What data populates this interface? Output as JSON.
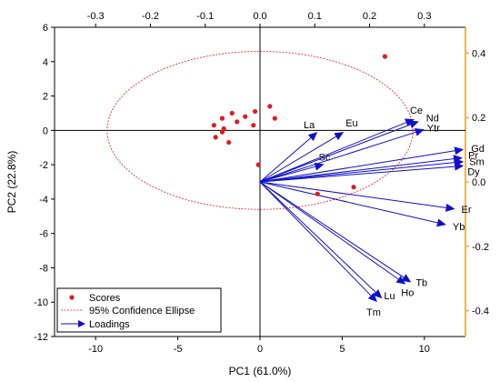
{
  "chart_data": {
    "type": "scatter",
    "title": "",
    "xlabel": "PC1 (61.0%)",
    "ylabel": "PC2 (22.8%)",
    "xlim": [
      -12.5,
      12.5
    ],
    "ylim": [
      -12,
      6
    ],
    "x_ticks": [
      "-10",
      "-5",
      "0",
      "5",
      "10"
    ],
    "y_ticks": [
      "-12",
      "-10",
      "-8",
      "-6",
      "-4",
      "-2",
      "0",
      "2",
      "4",
      "6"
    ],
    "top_axis": {
      "lim": [
        -0.375,
        0.375
      ],
      "ticks": [
        "-0.3",
        "-0.2",
        "-0.1",
        "0.0",
        "0.1",
        "0.2",
        "0.3"
      ]
    },
    "right_axis": {
      "lim": [
        -0.48,
        0.48
      ],
      "ticks": [
        "-0.4",
        "-0.2",
        "0.0",
        "0.2",
        "0.4"
      ],
      "color": "#f0a020"
    },
    "grid": false,
    "legend_position": "bottom-left",
    "series": [
      {
        "name": "Scores",
        "kind": "points",
        "color": "#e31a1c",
        "points": [
          [
            -2.8,
            0.3
          ],
          [
            -2.7,
            -0.4
          ],
          [
            -2.3,
            0.7
          ],
          [
            -2.2,
            0.1
          ],
          [
            -2.3,
            -0.1
          ],
          [
            -1.7,
            1.0
          ],
          [
            -1.4,
            0.5
          ],
          [
            -0.9,
            0.8
          ],
          [
            -0.4,
            0.3
          ],
          [
            -0.3,
            1.1
          ],
          [
            -1.9,
            -0.7
          ],
          [
            0.6,
            1.4
          ],
          [
            0.9,
            0.7
          ],
          [
            -0.1,
            -2.0
          ],
          [
            3.5,
            -3.7
          ],
          [
            5.7,
            -3.3
          ],
          [
            7.6,
            4.3
          ]
        ]
      },
      {
        "name": "95% Confidence Ellipse",
        "kind": "ellipse",
        "color": "#e31a1c",
        "center": [
          0,
          0
        ],
        "radii": [
          9.3,
          4.6
        ]
      },
      {
        "name": "Loadings",
        "kind": "vectors",
        "color": "#1010cc",
        "origin": [
          0,
          -3
        ],
        "vectors": [
          {
            "label": "La",
            "end": [
              0.105,
              0.155
            ]
          },
          {
            "label": "Eu",
            "end": [
              0.153,
              0.155
            ]
          },
          {
            "label": "Ce",
            "end": [
              0.282,
              0.195
            ]
          },
          {
            "label": "Nd",
            "end": [
              0.29,
              0.188
            ]
          },
          {
            "label": "Ytr",
            "end": [
              0.3,
              0.163
            ]
          },
          {
            "label": "Sc",
            "end": [
              0.117,
              0.055
            ]
          },
          {
            "label": "Gd",
            "end": [
              0.372,
              0.101
            ]
          },
          {
            "label": "Pr",
            "end": [
              0.37,
              0.075
            ]
          },
          {
            "label": "Sm",
            "end": [
              0.372,
              0.063
            ]
          },
          {
            "label": "Dy",
            "end": [
              0.372,
              0.05
            ]
          },
          {
            "label": "Er",
            "end": [
              0.356,
              -0.084
            ]
          },
          {
            "label": "Yb",
            "end": [
              0.34,
              -0.133
            ]
          },
          {
            "label": "Tb",
            "end": [
              0.276,
              -0.312
            ]
          },
          {
            "label": "Ho",
            "end": [
              0.266,
              -0.318
            ]
          },
          {
            "label": "Lu",
            "end": [
              0.223,
              -0.362
            ]
          },
          {
            "label": "Tm",
            "end": [
              0.214,
              -0.373
            ]
          }
        ]
      }
    ]
  }
}
